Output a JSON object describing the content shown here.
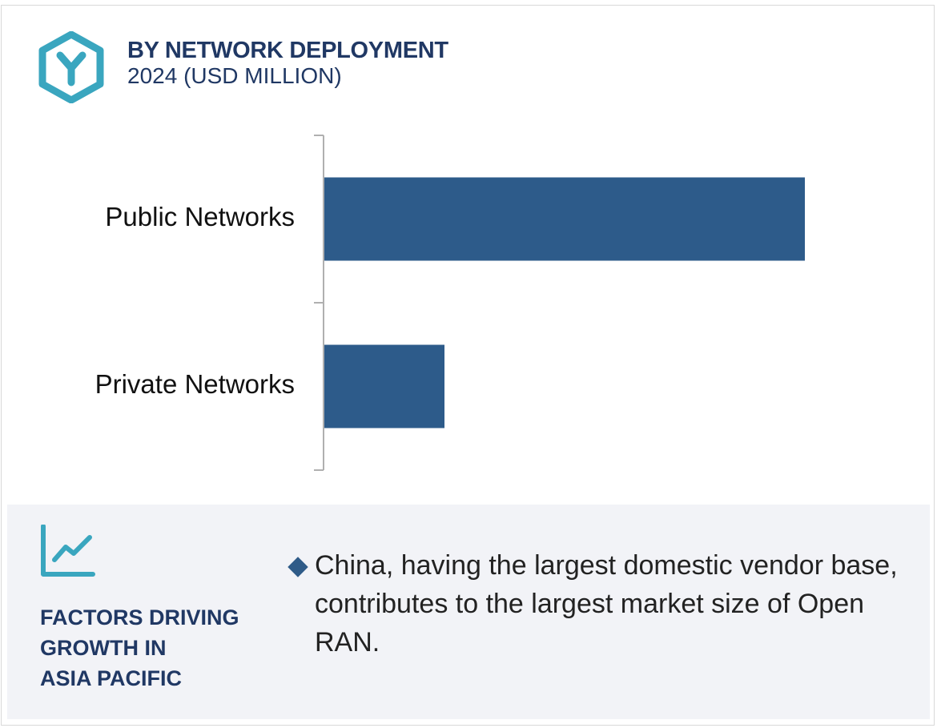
{
  "header": {
    "title": "BY NETWORK DEPLOYMENT",
    "subtitle": "2024 (USD MILLION)",
    "logo_icon": "hexagon-y-logo-icon"
  },
  "chart_data": {
    "type": "bar",
    "orientation": "horizontal",
    "title": "BY NETWORK DEPLOYMENT",
    "subtitle": "2024 (USD MILLION)",
    "categories": [
      "Public Networks",
      "Private Networks"
    ],
    "values": [
      80,
      20
    ],
    "xlim": [
      0,
      100
    ],
    "grid": false,
    "legend": "none",
    "value_labels_shown": false,
    "bar_color": "#2d5b8a"
  },
  "factors": {
    "icon": "trend-chart-icon",
    "heading_lines": [
      "FACTORS DRIVING",
      "GROWTH IN",
      "ASIA PACIFIC"
    ],
    "bullet_icon": "diamond-bullet-icon",
    "bullet_text": "China, having the largest domestic vendor base, contributes to the largest market size of Open RAN."
  },
  "colors": {
    "heading": "#203864",
    "bar": "#2d5b8a",
    "icon_teal": "#3aa6bf",
    "panel_bg": "#f2f3f7"
  }
}
